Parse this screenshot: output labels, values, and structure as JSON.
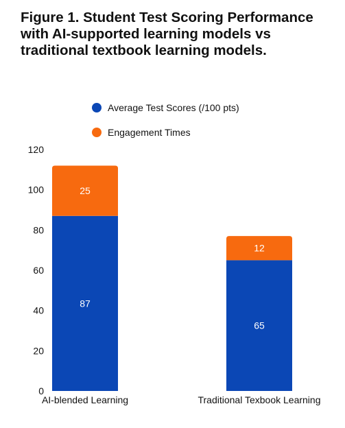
{
  "chart_data": {
    "type": "bar",
    "stacked": true,
    "title": "Figure 1. Student Test Scoring Performance with AI-supported learning models vs traditional textbook learning models.",
    "categories": [
      "AI-blended Learning",
      "Traditional Texbook Learning"
    ],
    "series": [
      {
        "name": "Average Test Scores (/100 pts)",
        "color": "#0B47B5",
        "values": [
          87,
          65
        ]
      },
      {
        "name": "Engagement Times",
        "color": "#F76A0F",
        "values": [
          25,
          12
        ]
      }
    ],
    "ylim": [
      0,
      120
    ],
    "yticks": [
      0,
      20,
      40,
      60,
      80,
      100,
      120
    ],
    "grid": false,
    "legend_position": "top"
  }
}
